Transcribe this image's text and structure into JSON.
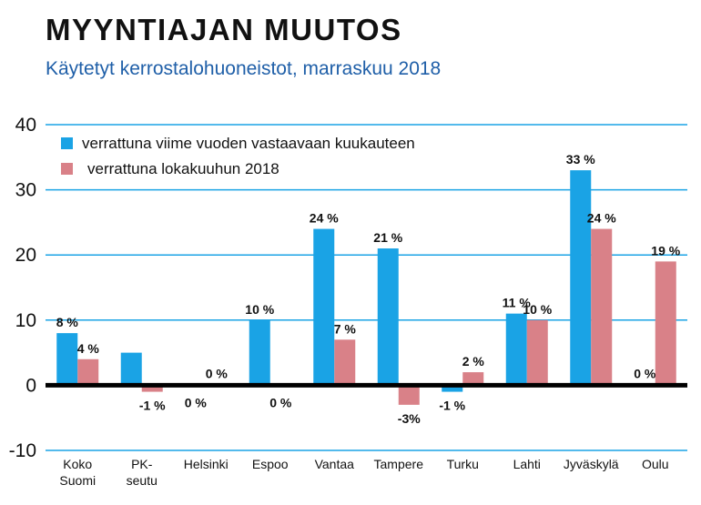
{
  "title": "MYYNTIAJAN MUUTOS",
  "subtitle": "Käytetyt kerrostalohuoneistot, marraskuu 2018",
  "colors": {
    "series1": "#1aa3e5",
    "series2": "#d98188",
    "grid": "#1aa3e5",
    "zero": "#000000"
  },
  "chart_data": {
    "type": "bar",
    "categories": [
      "Koko\nSuomi",
      "PK-\nseutu",
      "Helsinki",
      "Espoo",
      "Vantaa",
      "Tampere",
      "Turku",
      "Lahti",
      "Jyväskylä",
      "Oulu"
    ],
    "series": [
      {
        "name": "verrattuna viime vuoden vastaavaan kuukauteen",
        "values": [
          8,
          5,
          0,
          10,
          24,
          21,
          -1,
          11,
          33,
          0
        ],
        "labels": [
          "8 %",
          "",
          "0 %",
          "10 %",
          "24 %",
          "21 %",
          "-1 %",
          "11 %",
          "33 %",
          "0 %"
        ]
      },
      {
        "name": "verrattuna lokakuuhun 2018",
        "values": [
          4,
          -1,
          0,
          0,
          7,
          -3,
          2,
          10,
          24,
          19
        ],
        "labels": [
          "4 %",
          "-1 %",
          "0 %",
          "0 %",
          "7 %",
          "-3%",
          "2 %",
          "10 %",
          "24 %",
          "19 %"
        ]
      }
    ],
    "yticks": [
      40,
      30,
      20,
      10,
      0,
      -10
    ],
    "ylim": [
      -10,
      40
    ],
    "grid": true,
    "legend": "top-left"
  }
}
